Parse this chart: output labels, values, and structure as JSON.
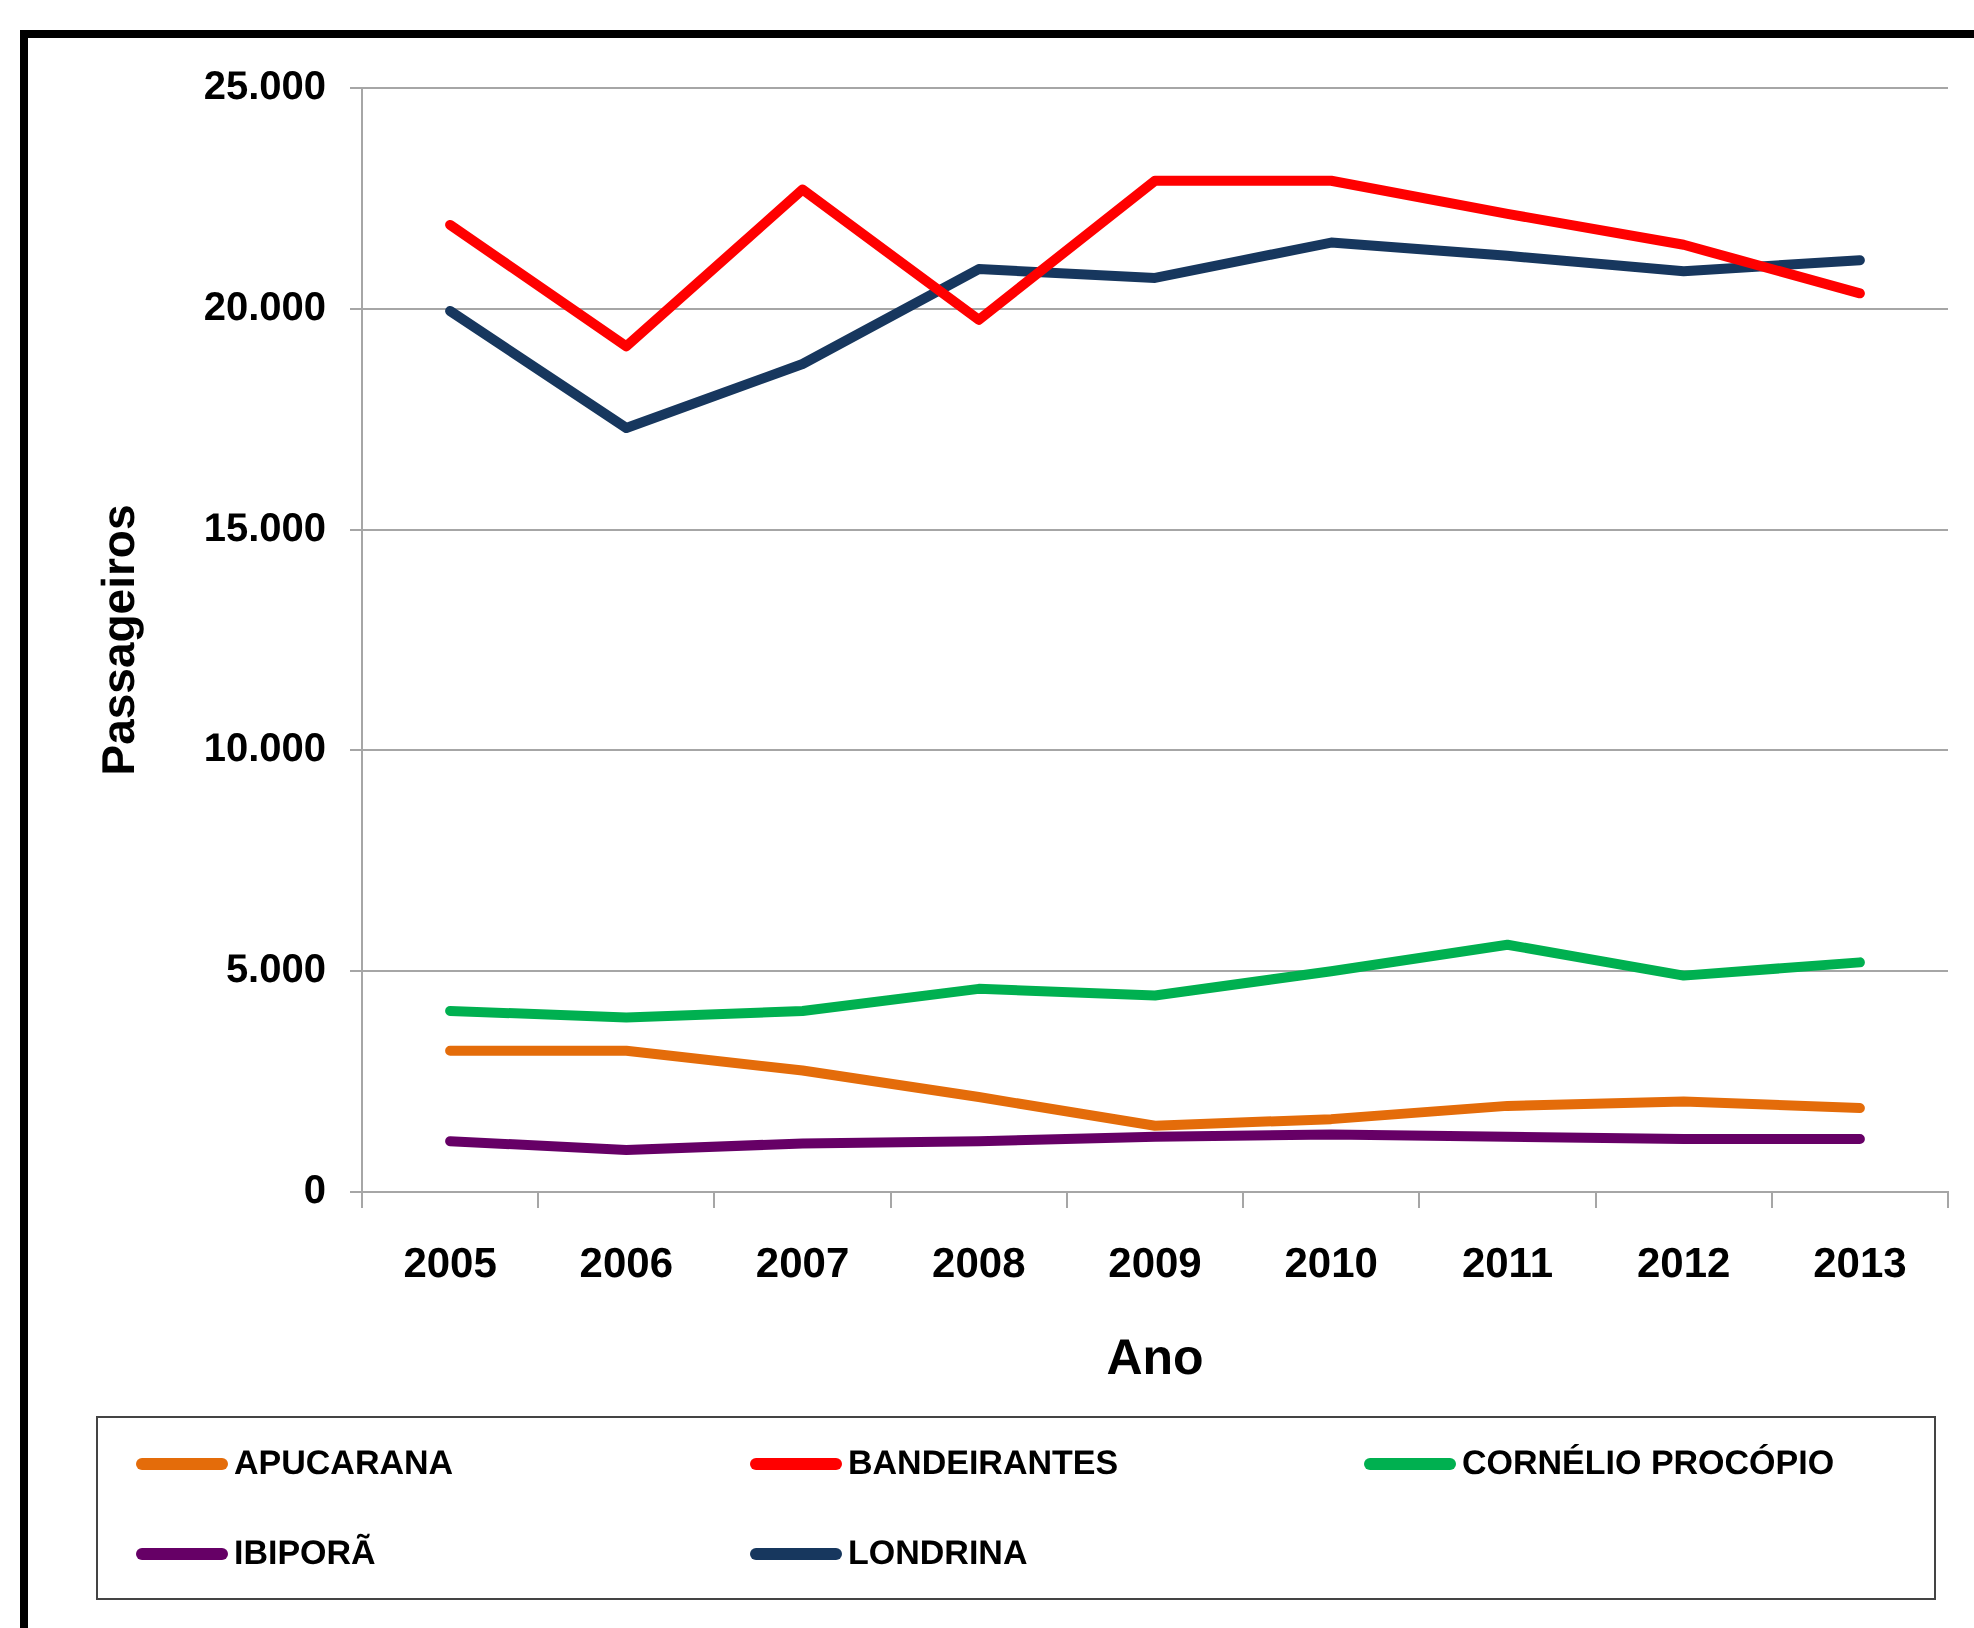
{
  "chart_data": {
    "type": "line",
    "xlabel": "Ano",
    "ylabel": "Passageiros",
    "categories": [
      "2005",
      "2006",
      "2007",
      "2008",
      "2009",
      "2010",
      "2011",
      "2012",
      "2013"
    ],
    "ylim": [
      0,
      25000
    ],
    "yticks": [
      0,
      {
        "value": 5000,
        "label": "5.000"
      },
      {
        "value": 10000,
        "label": "10.000"
      },
      {
        "value": 15000,
        "label": "15.000"
      },
      {
        "value": 20000,
        "label": "20.000"
      },
      {
        "value": 25000,
        "label": "25.000"
      }
    ],
    "grid": "y",
    "legend": "bottom",
    "marker": "none",
    "line_style": "solid",
    "series": [
      {
        "name": "APUCARANA",
        "color": "#e46c0a",
        "values": [
          3200,
          3200,
          2750,
          2150,
          1500,
          1650,
          1950,
          2050,
          1900
        ]
      },
      {
        "name": "BANDEIRANTES",
        "color": "#ff0000",
        "values": [
          21900,
          19150,
          22700,
          19750,
          22900,
          22900,
          22150,
          21450,
          20350
        ]
      },
      {
        "name": "CORNÉLIO PROCÓPIO",
        "color": "#00b050",
        "values": [
          4100,
          3950,
          4100,
          4600,
          4450,
          5000,
          5600,
          4900,
          5200
        ]
      },
      {
        "name": "IBIPORÃ",
        "color": "#660066",
        "values": [
          1150,
          950,
          1100,
          1150,
          1250,
          1300,
          1250,
          1200,
          1200
        ]
      },
      {
        "name": "LONDRINA",
        "color": "#17375e",
        "values": [
          19950,
          17300,
          18750,
          20900,
          20700,
          21500,
          21200,
          20850,
          21100
        ]
      }
    ]
  }
}
